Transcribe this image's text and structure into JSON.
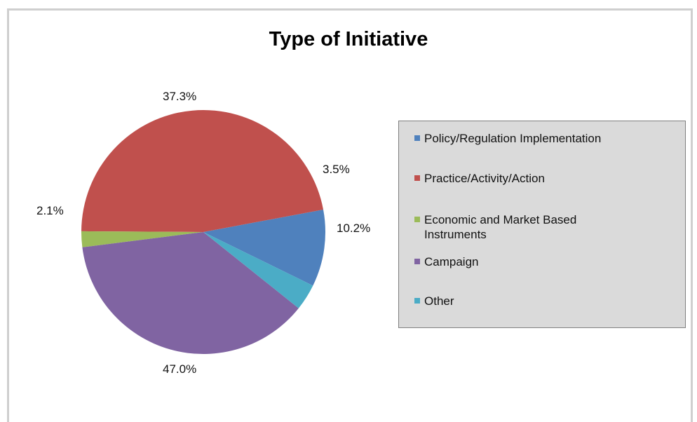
{
  "chart_data": {
    "type": "pie",
    "title": "Type of Initiative",
    "categories": [
      "Policy/Regulation Implementation",
      "Practice/Activity/Action",
      "Economic and Market Based Instruments",
      "Campaign",
      "Other"
    ],
    "values": [
      10.2,
      47.0,
      2.1,
      37.3,
      3.5
    ],
    "labels": [
      "10.2%",
      "47.0%",
      "2.1%",
      "37.3%",
      "3.5%"
    ],
    "colors": [
      "#4f81bd",
      "#c0504d",
      "#9bbb59",
      "#8064a2",
      "#4bacc6"
    ],
    "legend_position": "right"
  }
}
